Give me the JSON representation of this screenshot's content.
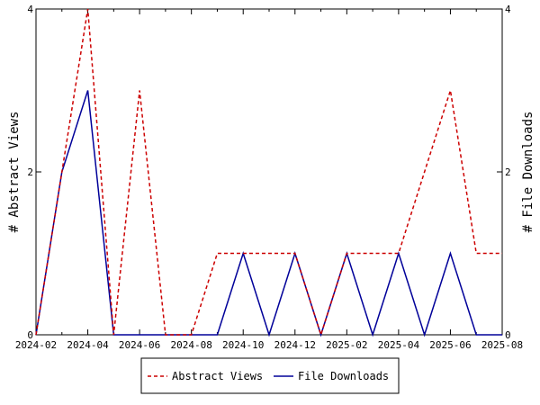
{
  "chart_data": {
    "type": "line",
    "title": "",
    "ylabel_left": "# Abstract Views",
    "ylabel_right": "# File Downloads",
    "x_ticks": [
      "2024-02",
      "2024-04",
      "2024-06",
      "2024-08",
      "2024-10",
      "2024-12",
      "2025-02",
      "2025-04",
      "2025-06",
      "2025-08"
    ],
    "y_ticks_left": [
      "0",
      "2",
      "4"
    ],
    "y_ticks_right": [
      "0",
      "2",
      "4"
    ],
    "ylim_left": [
      0,
      4
    ],
    "ylim_right": [
      0,
      4
    ],
    "grid": false,
    "legend_position": "bottom",
    "x": [
      "2024-02",
      "2024-03",
      "2024-04",
      "2024-05",
      "2024-06",
      "2024-07",
      "2024-08",
      "2024-09",
      "2024-10",
      "2024-11",
      "2024-12",
      "2025-01",
      "2025-02",
      "2025-03",
      "2025-04",
      "2025-05",
      "2025-06",
      "2025-07",
      "2025-08"
    ],
    "series": [
      {
        "name": "Abstract Views",
        "axis": "left",
        "color": "#cc0000",
        "style": "dashed",
        "values": [
          0,
          2,
          4,
          0,
          3,
          0,
          0,
          1,
          1,
          1,
          1,
          0,
          1,
          1,
          1,
          2,
          3,
          1,
          1
        ]
      },
      {
        "name": "File Downloads",
        "axis": "right",
        "color": "#000099",
        "style": "solid",
        "values": [
          0,
          2,
          3,
          0,
          0,
          0,
          0,
          0,
          1,
          0,
          1,
          0,
          1,
          0,
          1,
          0,
          1,
          0,
          0
        ]
      }
    ]
  }
}
